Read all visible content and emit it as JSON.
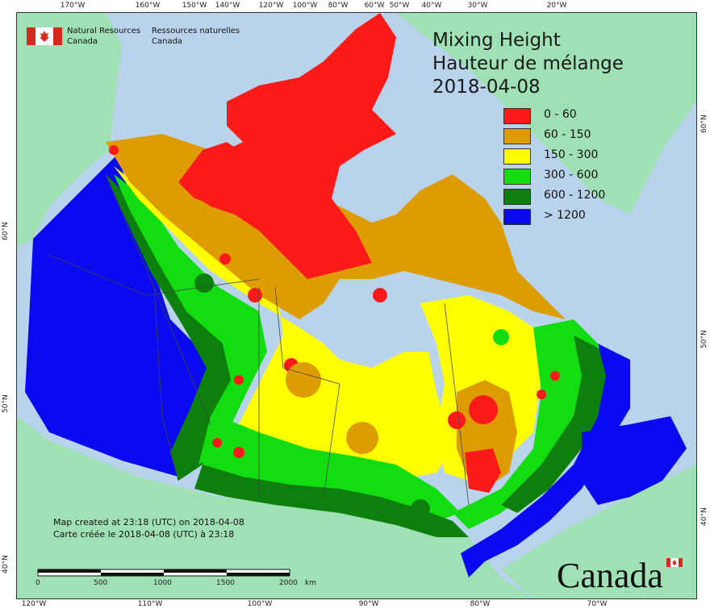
{
  "header": {
    "dept_en_line1": "Natural Resources",
    "dept_en_line2": "Canada",
    "dept_fr_line1": "Ressources naturelles",
    "dept_fr_line2": "Canada"
  },
  "title": {
    "line1": "Mixing Height",
    "line2": "Hauteur de mélange",
    "line3": "2018-04-08"
  },
  "legend": [
    {
      "label": "0 - 60",
      "color": "#ff1a1a"
    },
    {
      "label": "60 - 150",
      "color": "#dd9d00"
    },
    {
      "label": "150 - 300",
      "color": "#ffff00"
    },
    {
      "label": "300 - 600",
      "color": "#11dd11"
    },
    {
      "label": "600 - 1200",
      "color": "#0c7f0c"
    },
    {
      "label": "> 1200",
      "color": "#0a0af0"
    }
  ],
  "footer": {
    "created_en": "Map created at 23:18 (UTC) on 2018-04-08",
    "created_fr": "Carte créée le 2018-04-08 (UTC) à 23:18",
    "wordmark": "Canada"
  },
  "scale": {
    "labels": [
      "0",
      "500",
      "1000",
      "1500",
      "2000"
    ],
    "unit": "km"
  },
  "ticks": {
    "top": [
      "170°W",
      "160°W",
      "150°W",
      "140°W",
      "120°W",
      "100°W",
      "80°W",
      "60°W",
      "50°W",
      "40°W",
      "30°W",
      "20°W"
    ],
    "bottom": [
      "120°W",
      "110°W",
      "100°W",
      "90°W",
      "80°W",
      "70°W"
    ],
    "left": [
      "60°N",
      "50°N",
      "40°N"
    ],
    "right": [
      "60°N",
      "50°N",
      "40°N"
    ]
  },
  "colors": {
    "water": "#b9d3ec",
    "land": "#9fe0b4",
    "accent_red": "#d52b1e"
  }
}
